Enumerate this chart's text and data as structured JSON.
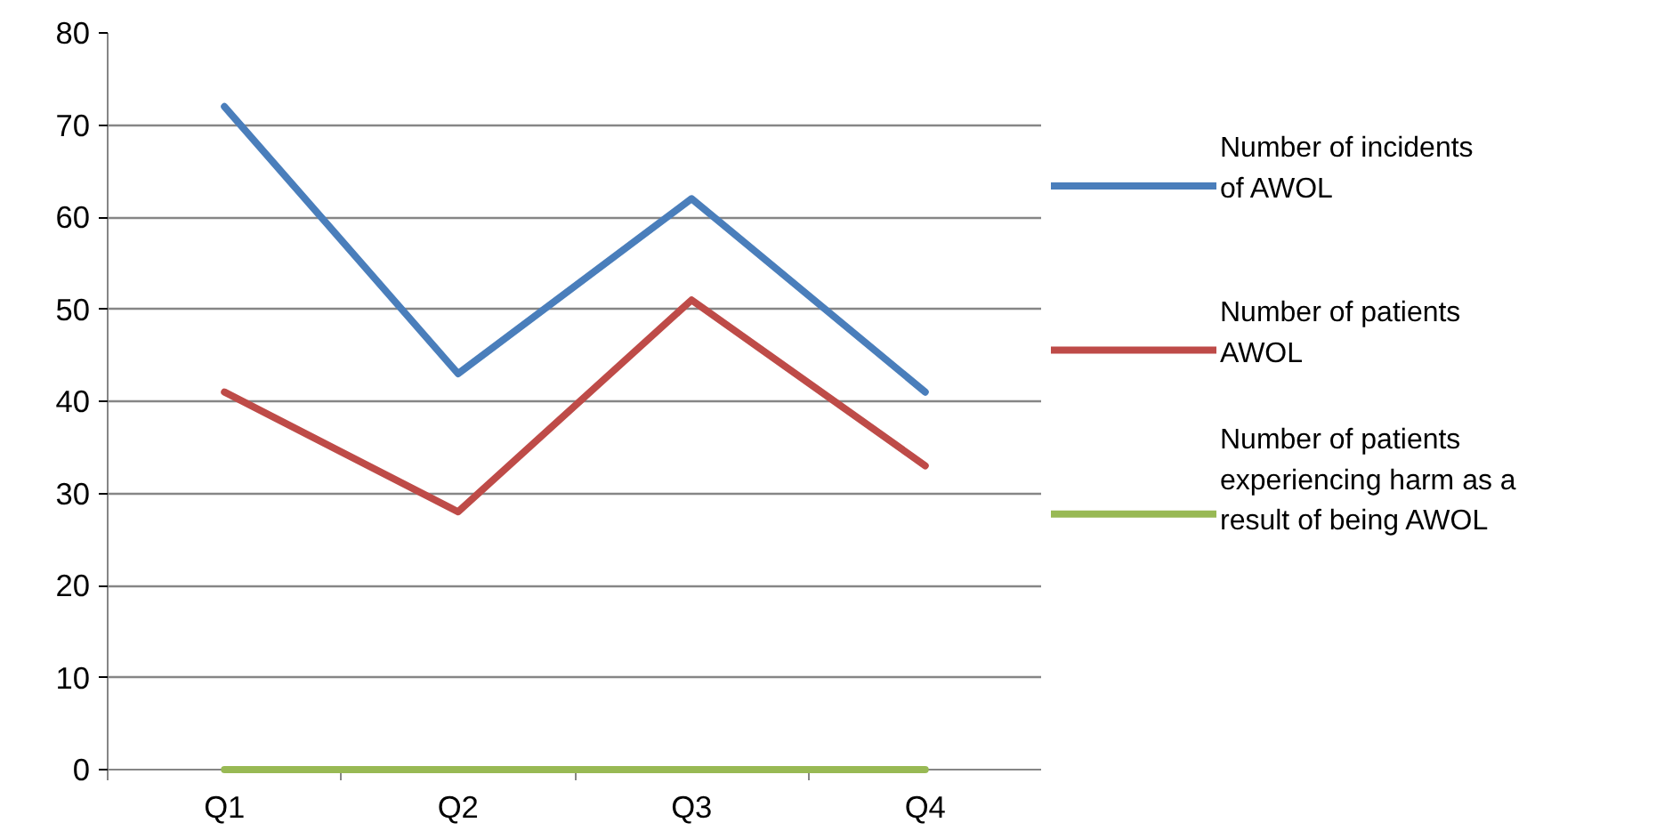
{
  "chart_data": {
    "type": "line",
    "categories": [
      "Q1",
      "Q2",
      "Q3",
      "Q4"
    ],
    "series": [
      {
        "name": "Number of incidents of AWOL",
        "color": "#4a7ebb",
        "values": [
          72,
          43,
          62,
          41
        ]
      },
      {
        "name": "Number of patients AWOL",
        "color": "#be4b48",
        "values": [
          41,
          28,
          51,
          33
        ]
      },
      {
        "name": "Number of patients experiencing harm as a result of being AWOL",
        "color": "#98b954",
        "values": [
          0,
          0,
          0,
          0
        ]
      }
    ],
    "ylim": [
      0,
      80
    ],
    "yticks": [
      0,
      10,
      20,
      30,
      40,
      50,
      60,
      70,
      80
    ],
    "grid": "y",
    "legend": "right",
    "marker": "none",
    "line_style": "solid"
  }
}
